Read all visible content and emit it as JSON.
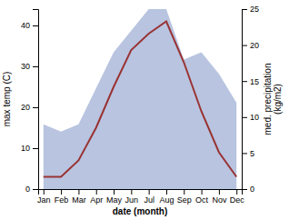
{
  "chart_data": {
    "type": "line",
    "categories": [
      "Jan",
      "Feb",
      "Mar",
      "Apr",
      "May",
      "Jun",
      "Jul",
      "Aug",
      "Sep",
      "Oct",
      "Nov",
      "Dec"
    ],
    "series": [
      {
        "type": "area",
        "axis": "y2",
        "color": "#b8c4e0",
        "values": [
          9,
          8,
          9,
          14,
          19,
          22,
          25,
          25,
          18,
          19,
          16,
          12
        ]
      },
      {
        "type": "line",
        "color": "#993333",
        "values": [
          3,
          3,
          7,
          15,
          25,
          34,
          38,
          41,
          31,
          19,
          9,
          3
        ]
      }
    ],
    "xlabel": "date (month)",
    "ylabel": "max temp (C)",
    "y2label": "med. precipitation\n(kg/m2)",
    "ylim": [
      0,
      44
    ],
    "yticks": [
      0,
      10,
      20,
      30,
      40
    ],
    "y2lim": [
      0,
      25
    ],
    "y2ticks": [
      0,
      5,
      10,
      15,
      20,
      25
    ],
    "grid": false
  }
}
